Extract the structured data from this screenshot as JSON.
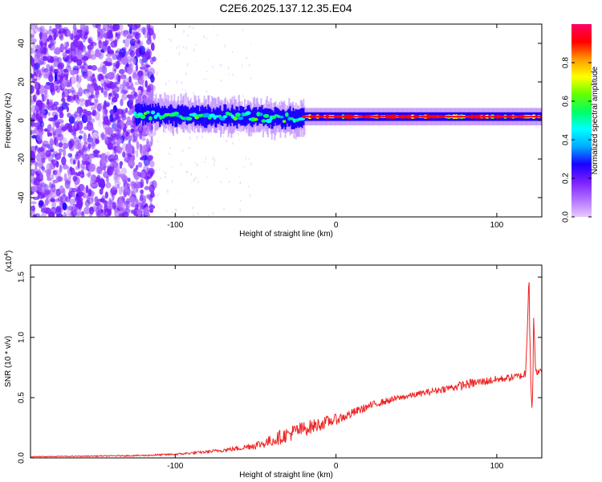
{
  "title": "C2E6.2025.137.12.35.E04",
  "chart_data": [
    {
      "type": "heatmap",
      "title": "C2E6.2025.137.12.35.E04",
      "xlabel": "Height of straight line (km)",
      "ylabel": "Frequency (Hz)",
      "xlim": [
        -190,
        128
      ],
      "ylim": [
        -50,
        50
      ],
      "xticks": [
        -100,
        0,
        100
      ],
      "yticks": [
        -40,
        -20,
        0,
        20,
        40
      ],
      "grid": false,
      "colorbar": {
        "label": "Normalized spectral amplitude",
        "range": [
          0,
          1
        ],
        "ticks": [
          0.0,
          0.2,
          0.4,
          0.6,
          0.8
        ],
        "tick_labels": [
          "0.0",
          "0.2",
          "0.4",
          "0.6",
          "0.8"
        ],
        "colormap": [
          "#ffffff",
          "#e8c8ff",
          "#b070ff",
          "#7a1fff",
          "#1a00ff",
          "#00aaff",
          "#00ffff",
          "#00ff66",
          "#66ff00",
          "#ffff00",
          "#ff9900",
          "#ff0000",
          "#ff0066"
        ]
      },
      "features": {
        "noise_region_x": [
          -190,
          -113
        ],
        "band_start_x": -125,
        "band_center_frequency_hz": 2,
        "band_color_dominant_x": [
          -20,
          125
        ]
      }
    },
    {
      "type": "line",
      "xlabel": "Height of straight line (km)",
      "ylabel": "SNR (10 * v/v)",
      "multiplier_label": "(x10",
      "multiplier_exponent": "4",
      "xlim": [
        -190,
        128
      ],
      "ylim": [
        0,
        1.6
      ],
      "xticks": [
        -100,
        0,
        100
      ],
      "yticks": [
        0.0,
        0.5,
        1.0,
        1.5
      ],
      "ytick_labels": [
        "0.0",
        "0.5",
        "1.0",
        "1.5"
      ],
      "series": [
        {
          "color": "#ee2222",
          "x": [
            -190,
            -150,
            -120,
            -100,
            -80,
            -60,
            -45,
            -35,
            -25,
            -15,
            -5,
            5,
            15,
            25,
            40,
            55,
            70,
            85,
            95,
            105,
            115,
            118,
            120,
            121,
            122,
            123,
            124,
            126,
            128
          ],
          "y": [
            0.01,
            0.015,
            0.02,
            0.03,
            0.05,
            0.08,
            0.12,
            0.17,
            0.22,
            0.26,
            0.3,
            0.34,
            0.4,
            0.45,
            0.5,
            0.54,
            0.58,
            0.62,
            0.64,
            0.66,
            0.68,
            0.7,
            1.55,
            0.75,
            0.35,
            1.2,
            0.7,
            0.72,
            0.72
          ],
          "noise": [
            0.003,
            0.004,
            0.006,
            0.008,
            0.012,
            0.02,
            0.04,
            0.06,
            0.07,
            0.06,
            0.05,
            0.04,
            0.035,
            0.03,
            0.025,
            0.025,
            0.03,
            0.04,
            0.035,
            0.03,
            0.03,
            0.05,
            0.1,
            0.15,
            0.1,
            0.1,
            0.05,
            0.02,
            0.02
          ]
        }
      ]
    }
  ]
}
